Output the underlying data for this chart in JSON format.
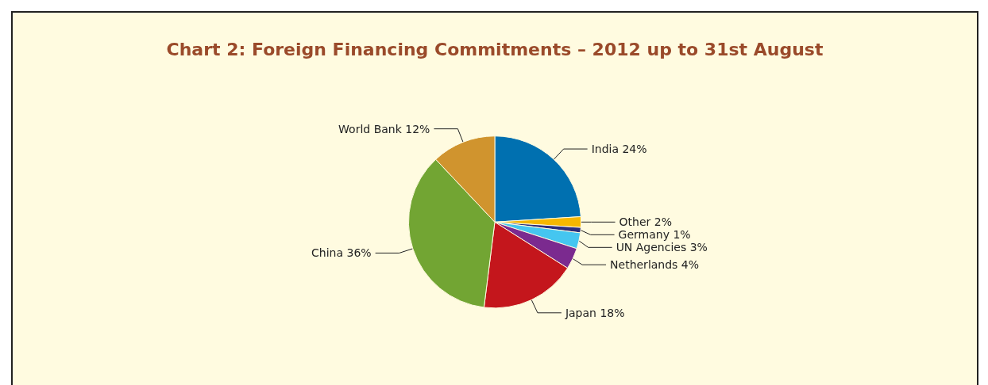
{
  "chart_data": {
    "type": "pie",
    "title": "Chart 2: Foreign Financing Commitments – 2012 up to 31st August",
    "categories": [
      "India",
      "Other",
      "Germany",
      "UN Agencies",
      "Netherlands",
      "Japan",
      "China",
      "World Bank"
    ],
    "values": [
      24,
      2,
      1,
      3,
      4,
      18,
      36,
      12
    ],
    "value_labels": [
      "24%",
      "2%",
      "1%",
      "3%",
      "4%",
      "18%",
      "36%",
      "12%"
    ],
    "colors": [
      "#0070b0",
      "#f5b700",
      "#2d2d7a",
      "#45c6f0",
      "#7b2a8f",
      "#c4161c",
      "#72a533",
      "#d0942e"
    ],
    "legend": false
  }
}
